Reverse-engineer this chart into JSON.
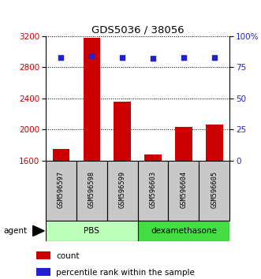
{
  "title": "GDS5036 / 38056",
  "samples": [
    "GSM596597",
    "GSM596598",
    "GSM596599",
    "GSM596603",
    "GSM596604",
    "GSM596605"
  ],
  "counts": [
    1750,
    3180,
    2360,
    1680,
    2030,
    2060
  ],
  "percentile_ranks": [
    83,
    84,
    83,
    82,
    83,
    83
  ],
  "bar_color": "#cc0000",
  "dot_color": "#2222cc",
  "ylim_left": [
    1600,
    3200
  ],
  "yticks_left": [
    1600,
    2000,
    2400,
    2800,
    3200
  ],
  "ylim_right": [
    0,
    100
  ],
  "yticks_right": [
    0,
    25,
    50,
    75,
    100
  ],
  "yticklabels_right": [
    "0",
    "25",
    "50",
    "75",
    "100%"
  ],
  "group_pbs_label": "PBS",
  "group_pbs_color": "#bbffbb",
  "group_dexa_label": "dexamethasone",
  "group_dexa_color": "#44dd44",
  "agent_label": "agent",
  "legend_count_label": "count",
  "legend_pct_label": "percentile rank within the sample",
  "tick_label_color_left": "#cc0000",
  "tick_label_color_right": "#2222cc",
  "xlabel_box_color": "#c8c8c8",
  "bar_width": 0.55
}
